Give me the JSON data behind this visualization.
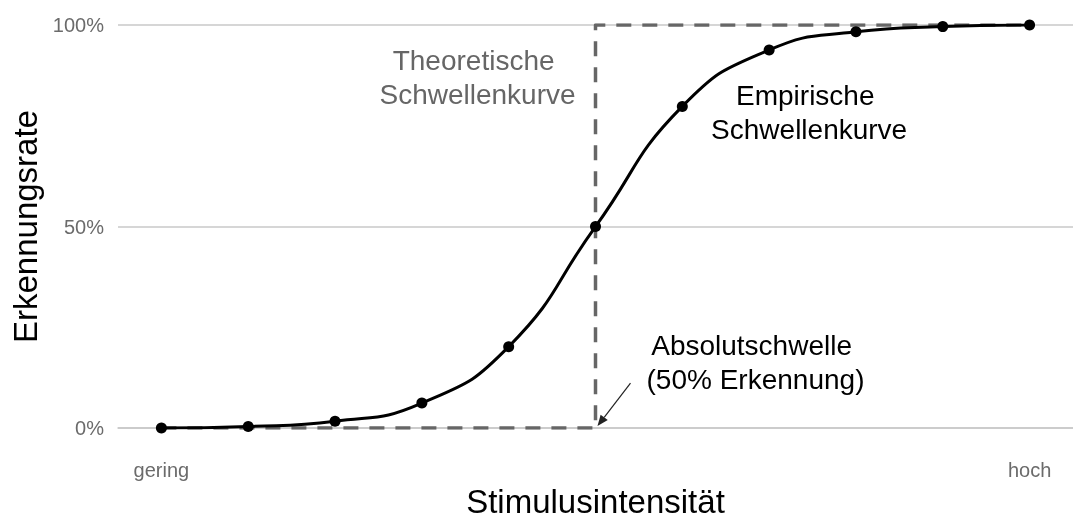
{
  "chart_data": {
    "type": "line",
    "xlabel": "Stimulusintensität",
    "ylabel": "Erkennungsrate",
    "categories": [
      "gering",
      null,
      null,
      null,
      null,
      null,
      null,
      null,
      null,
      null,
      "hoch"
    ],
    "ylim": [
      0,
      100
    ],
    "yticks": [
      {
        "value": 0,
        "label": "0%"
      },
      {
        "value": 50,
        "label": "50%"
      },
      {
        "value": 100,
        "label": "100%"
      }
    ],
    "grid": "y",
    "legend": false,
    "marker": "circle",
    "line_style": "solid",
    "series": [
      {
        "name": "Theoretische Schwellenkurve",
        "type": "step",
        "color": "#666666",
        "values": [
          0,
          0,
          0,
          0,
          0,
          100,
          100,
          100,
          100,
          100,
          100
        ],
        "marker": "none",
        "line_style": "dashed"
      },
      {
        "name": "Empirische Schwellenkurve",
        "color": "#000000",
        "values": [
          0,
          0.4,
          1.7,
          6.2,
          20.2,
          50,
          79.8,
          93.8,
          98.3,
          99.6,
          100
        ]
      }
    ],
    "annotations": [
      "Absolutschwelle (50% Erkennung)"
    ]
  }
}
